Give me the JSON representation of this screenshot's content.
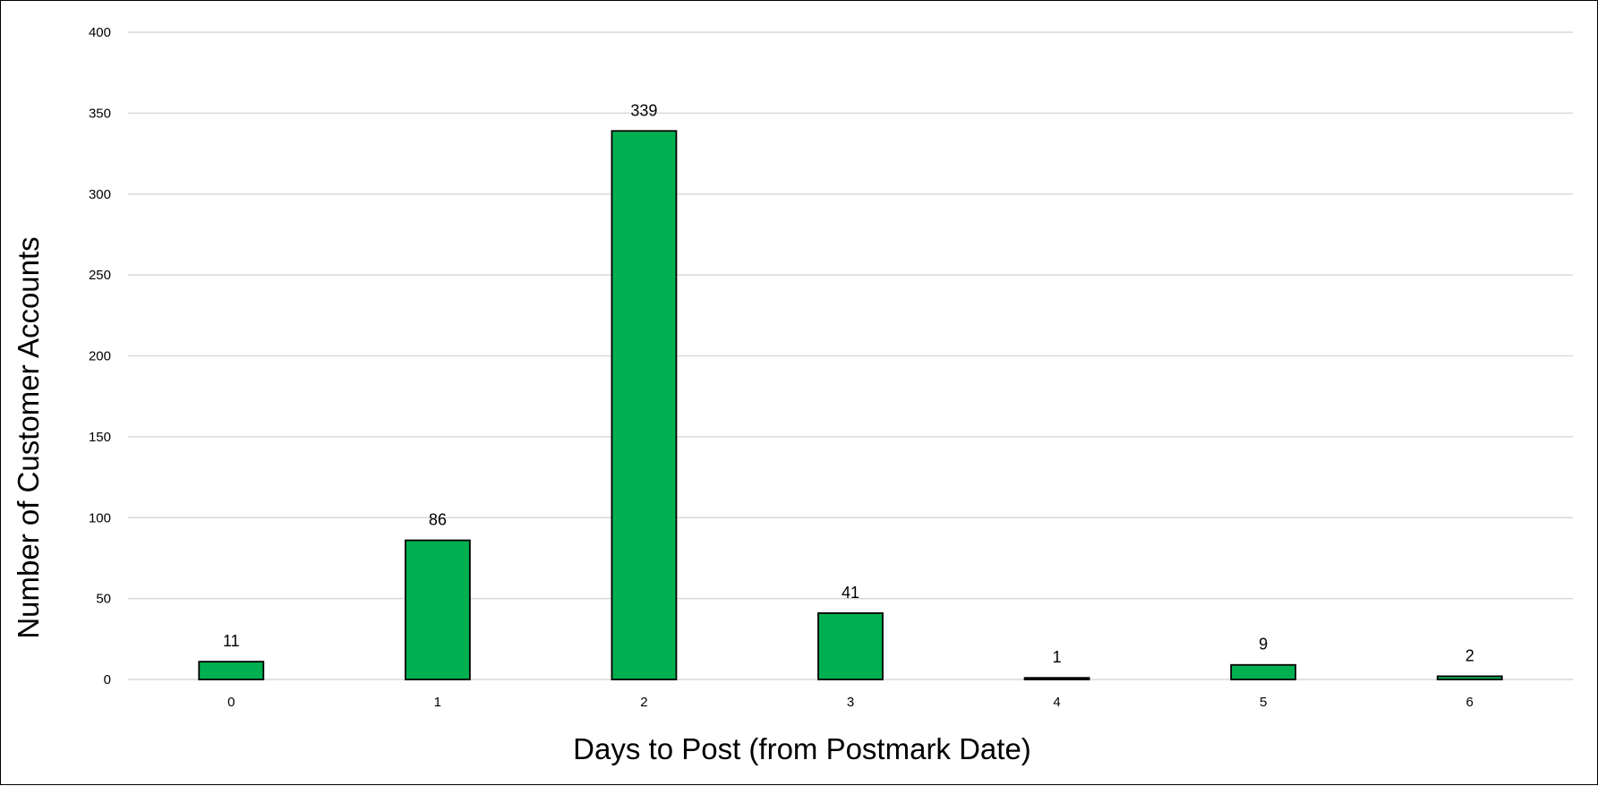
{
  "chart_data": {
    "type": "bar",
    "categories": [
      "0",
      "1",
      "2",
      "3",
      "4",
      "5",
      "6"
    ],
    "values": [
      11,
      86,
      339,
      41,
      1,
      9,
      2
    ],
    "data_labels": [
      "11",
      "86",
      "339",
      "41",
      "1",
      "9",
      "2"
    ],
    "title": "",
    "xlabel": "Days to Post (from Postmark Date)",
    "ylabel": "Number of Customer Accounts",
    "ylim": [
      0,
      400
    ],
    "yticks": [
      "0",
      "50",
      "100",
      "150",
      "200",
      "250",
      "300",
      "350",
      "400"
    ],
    "grid": "horizontal",
    "legend": "none",
    "colors": {
      "bar_fill": "#00B050",
      "bar_stroke": "#000000",
      "gridline": "#D9D9D9",
      "axis_line": "#D9D9D9",
      "text": "#000000"
    }
  }
}
